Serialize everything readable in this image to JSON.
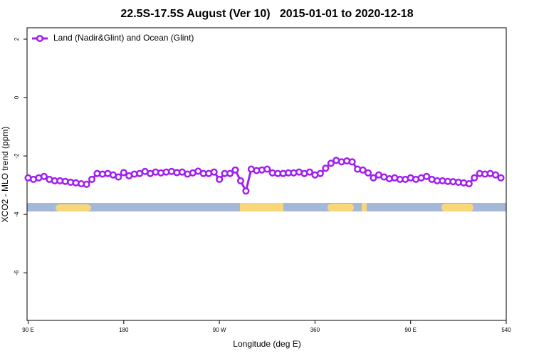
{
  "chart_data": {
    "type": "line",
    "title": "22.5S-17.5S August (Ver 10)   2015-01-01 to 2020-12-18",
    "x_label": "Longitude (deg E)",
    "y_label": "XCO2 - MLO trend (ppm)",
    "legend": "top-left",
    "x": [
      90,
      95,
      100,
      105,
      110,
      115,
      120,
      125,
      130,
      135,
      140,
      145,
      150,
      155,
      160,
      165,
      170,
      175,
      180,
      185,
      190,
      195,
      200,
      205,
      210,
      215,
      220,
      225,
      230,
      235,
      240,
      245,
      250,
      255,
      260,
      265,
      270,
      275,
      280,
      285,
      290,
      295,
      300,
      305,
      310,
      315,
      320,
      325,
      330,
      335,
      340,
      345,
      350,
      355,
      360,
      365,
      370,
      375,
      380,
      385,
      390,
      395,
      400,
      405,
      410,
      415,
      420,
      425,
      430,
      435,
      440,
      445,
      450,
      455,
      460,
      465,
      470,
      475,
      480,
      485,
      490,
      495,
      500,
      505,
      510,
      515,
      520,
      525,
      530,
      535
    ],
    "series": [
      {
        "name": "Land (Nadir&Glint) and Ocean (Glint)",
        "color": "#a020f0",
        "values": [
          -2.75,
          -2.8,
          -2.75,
          -2.7,
          -2.8,
          -2.85,
          -2.85,
          -2.87,
          -2.9,
          -2.92,
          -2.95,
          -2.97,
          -2.8,
          -2.6,
          -2.62,
          -2.6,
          -2.65,
          -2.72,
          -2.57,
          -2.68,
          -2.62,
          -2.6,
          -2.53,
          -2.6,
          -2.55,
          -2.58,
          -2.55,
          -2.53,
          -2.57,
          -2.55,
          -2.62,
          -2.58,
          -2.52,
          -2.6,
          -2.6,
          -2.55,
          -2.8,
          -2.6,
          -2.6,
          -2.48,
          -2.85,
          -3.2,
          -2.45,
          -2.5,
          -2.48,
          -2.45,
          -2.58,
          -2.6,
          -2.6,
          -2.58,
          -2.58,
          -2.55,
          -2.6,
          -2.55,
          -2.65,
          -2.6,
          -2.42,
          -2.25,
          -2.15,
          -2.2,
          -2.17,
          -2.2,
          -2.45,
          -2.48,
          -2.58,
          -2.75,
          -2.65,
          -2.72,
          -2.78,
          -2.75,
          -2.8,
          -2.8,
          -2.75,
          -2.8,
          -2.75,
          -2.7,
          -2.8,
          -2.85,
          -2.85,
          -2.87,
          -2.88,
          -2.9,
          -2.92,
          -2.95,
          -2.75,
          -2.6,
          -2.62,
          -2.6,
          -2.65,
          -2.75
        ]
      }
    ],
    "xlim": [
      89,
      540
    ],
    "xticks": [
      {
        "value": 90,
        "label": "90 E"
      },
      180,
      {
        "value": 270,
        "label": "90 W"
      },
      360,
      {
        "value": 450,
        "label": "90 E"
      },
      540
    ],
    "ylim": [
      -7.63,
      2.39
    ],
    "yticks": [
      2,
      0,
      -2,
      -4,
      -6
    ]
  }
}
